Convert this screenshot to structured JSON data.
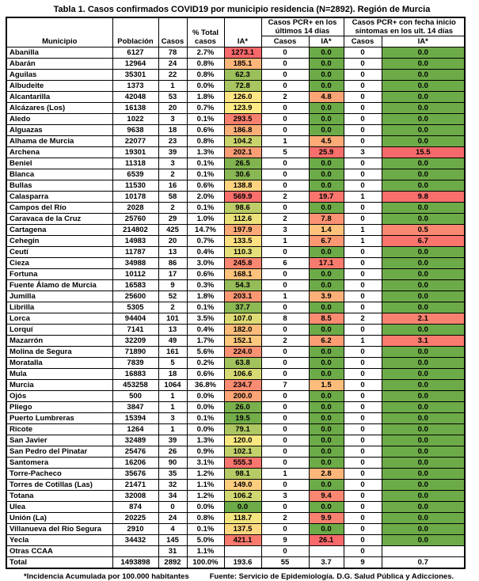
{
  "title": "Tabla 1. Casos confirmados COVID19 por municipio residencia (N=2892). Región de Murcia",
  "header": {
    "municipio": "Municipio",
    "poblacion": "Población",
    "casos": "Casos",
    "pct": "% Total casos",
    "ia": "IA*",
    "group_pcr14": "Casos PCR+ en los últimos 14 días",
    "group_sint14": "Casos PCR+ con fecha inicio síntomas en los ult. 14 días",
    "sub_casos": "Casos",
    "sub_ia": "IA*"
  },
  "rows": [
    {
      "municipio": "Abanilla",
      "poblacion": "6127",
      "casos": "78",
      "pct": "2.7%",
      "ia": "1273.1",
      "casos14": "0",
      "ia14": "0.0",
      "casos_sint": "0",
      "ia_sint": "0.0"
    },
    {
      "municipio": "Abarán",
      "poblacion": "12964",
      "casos": "24",
      "pct": "0.8%",
      "ia": "185.1",
      "casos14": "0",
      "ia14": "0.0",
      "casos_sint": "0",
      "ia_sint": "0.0"
    },
    {
      "municipio": "Aguilas",
      "poblacion": "35301",
      "casos": "22",
      "pct": "0.8%",
      "ia": "62.3",
      "casos14": "0",
      "ia14": "0.0",
      "casos_sint": "0",
      "ia_sint": "0.0"
    },
    {
      "municipio": "Albudeite",
      "poblacion": "1373",
      "casos": "1",
      "pct": "0.0%",
      "ia": "72.8",
      "casos14": "0",
      "ia14": "0.0",
      "casos_sint": "0",
      "ia_sint": "0.0"
    },
    {
      "municipio": "Alcantarilla",
      "poblacion": "42048",
      "casos": "53",
      "pct": "1.8%",
      "ia": "126.0",
      "casos14": "2",
      "ia14": "4.8",
      "casos_sint": "0",
      "ia_sint": "0.0"
    },
    {
      "municipio": "Alcázares (Los)",
      "poblacion": "16138",
      "casos": "20",
      "pct": "0.7%",
      "ia": "123.9",
      "casos14": "0",
      "ia14": "0.0",
      "casos_sint": "0",
      "ia_sint": "0.0"
    },
    {
      "municipio": "Aledo",
      "poblacion": "1022",
      "casos": "3",
      "pct": "0.1%",
      "ia": "293.5",
      "casos14": "0",
      "ia14": "0.0",
      "casos_sint": "0",
      "ia_sint": "0.0"
    },
    {
      "municipio": "Alguazas",
      "poblacion": "9638",
      "casos": "18",
      "pct": "0.6%",
      "ia": "186.8",
      "casos14": "0",
      "ia14": "0.0",
      "casos_sint": "0",
      "ia_sint": "0.0"
    },
    {
      "municipio": "Alhama de Murcia",
      "poblacion": "22077",
      "casos": "23",
      "pct": "0.8%",
      "ia": "104.2",
      "casos14": "1",
      "ia14": "4.5",
      "casos_sint": "0",
      "ia_sint": "0.0"
    },
    {
      "municipio": "Archena",
      "poblacion": "19301",
      "casos": "39",
      "pct": "1.3%",
      "ia": "202.1",
      "casos14": "5",
      "ia14": "25.9",
      "casos_sint": "3",
      "ia_sint": "15.5"
    },
    {
      "municipio": "Beniel",
      "poblacion": "11318",
      "casos": "3",
      "pct": "0.1%",
      "ia": "26.5",
      "casos14": "0",
      "ia14": "0.0",
      "casos_sint": "0",
      "ia_sint": "0.0"
    },
    {
      "municipio": "Blanca",
      "poblacion": "6539",
      "casos": "2",
      "pct": "0.1%",
      "ia": "30.6",
      "casos14": "0",
      "ia14": "0.0",
      "casos_sint": "0",
      "ia_sint": "0.0"
    },
    {
      "municipio": "Bullas",
      "poblacion": "11530",
      "casos": "16",
      "pct": "0.6%",
      "ia": "138.8",
      "casos14": "0",
      "ia14": "0.0",
      "casos_sint": "0",
      "ia_sint": "0.0"
    },
    {
      "municipio": "Calasparra",
      "poblacion": "10178",
      "casos": "58",
      "pct": "2.0%",
      "ia": "569.9",
      "casos14": "2",
      "ia14": "19.7",
      "casos_sint": "1",
      "ia_sint": "9.8"
    },
    {
      "municipio": "Campos del Río",
      "poblacion": "2028",
      "casos": "2",
      "pct": "0.1%",
      "ia": "98.6",
      "casos14": "0",
      "ia14": "0.0",
      "casos_sint": "0",
      "ia_sint": "0.0"
    },
    {
      "municipio": "Caravaca de la Cruz",
      "poblacion": "25760",
      "casos": "29",
      "pct": "1.0%",
      "ia": "112.6",
      "casos14": "2",
      "ia14": "7.8",
      "casos_sint": "0",
      "ia_sint": "0.0"
    },
    {
      "municipio": "Cartagena",
      "poblacion": "214802",
      "casos": "425",
      "pct": "14.7%",
      "ia": "197.9",
      "casos14": "3",
      "ia14": "1.4",
      "casos_sint": "1",
      "ia_sint": "0.5"
    },
    {
      "municipio": "Cehegín",
      "poblacion": "14983",
      "casos": "20",
      "pct": "0.7%",
      "ia": "133.5",
      "casos14": "1",
      "ia14": "6.7",
      "casos_sint": "1",
      "ia_sint": "6.7"
    },
    {
      "municipio": "Ceutí",
      "poblacion": "11787",
      "casos": "13",
      "pct": "0.4%",
      "ia": "110.3",
      "casos14": "0",
      "ia14": "0.0",
      "casos_sint": "0",
      "ia_sint": "0.0"
    },
    {
      "municipio": "Cieza",
      "poblacion": "34988",
      "casos": "86",
      "pct": "3.0%",
      "ia": "245.8",
      "casos14": "6",
      "ia14": "17.1",
      "casos_sint": "0",
      "ia_sint": "0.0"
    },
    {
      "municipio": "Fortuna",
      "poblacion": "10112",
      "casos": "17",
      "pct": "0.6%",
      "ia": "168.1",
      "casos14": "0",
      "ia14": "0.0",
      "casos_sint": "0",
      "ia_sint": "0.0"
    },
    {
      "municipio": "Fuente Álamo de Murcia",
      "poblacion": "16583",
      "casos": "9",
      "pct": "0.3%",
      "ia": "54.3",
      "casos14": "0",
      "ia14": "0.0",
      "casos_sint": "0",
      "ia_sint": "0.0"
    },
    {
      "municipio": "Jumilla",
      "poblacion": "25600",
      "casos": "52",
      "pct": "1.8%",
      "ia": "203.1",
      "casos14": "1",
      "ia14": "3.9",
      "casos_sint": "0",
      "ia_sint": "0.0"
    },
    {
      "municipio": "Librilla",
      "poblacion": "5305",
      "casos": "2",
      "pct": "0.1%",
      "ia": "37.7",
      "casos14": "0",
      "ia14": "0.0",
      "casos_sint": "0",
      "ia_sint": "0.0"
    },
    {
      "municipio": "Lorca",
      "poblacion": "94404",
      "casos": "101",
      "pct": "3.5%",
      "ia": "107.0",
      "casos14": "8",
      "ia14": "8.5",
      "casos_sint": "2",
      "ia_sint": "2.1"
    },
    {
      "municipio": "Lorquí",
      "poblacion": "7141",
      "casos": "13",
      "pct": "0.4%",
      "ia": "182.0",
      "casos14": "0",
      "ia14": "0.0",
      "casos_sint": "0",
      "ia_sint": "0.0"
    },
    {
      "municipio": "Mazarrón",
      "poblacion": "32209",
      "casos": "49",
      "pct": "1.7%",
      "ia": "152.1",
      "casos14": "2",
      "ia14": "6.2",
      "casos_sint": "1",
      "ia_sint": "3.1"
    },
    {
      "municipio": "Molina de Segura",
      "poblacion": "71890",
      "casos": "161",
      "pct": "5.6%",
      "ia": "224.0",
      "casos14": "0",
      "ia14": "0.0",
      "casos_sint": "0",
      "ia_sint": "0.0"
    },
    {
      "municipio": "Moratalla",
      "poblacion": "7839",
      "casos": "5",
      "pct": "0.2%",
      "ia": "63.8",
      "casos14": "0",
      "ia14": "0.0",
      "casos_sint": "0",
      "ia_sint": "0.0"
    },
    {
      "municipio": "Mula",
      "poblacion": "16883",
      "casos": "18",
      "pct": "0.6%",
      "ia": "106.6",
      "casos14": "0",
      "ia14": "0.0",
      "casos_sint": "0",
      "ia_sint": "0.0"
    },
    {
      "municipio": "Murcia",
      "poblacion": "453258",
      "casos": "1064",
      "pct": "36.8%",
      "ia": "234.7",
      "casos14": "7",
      "ia14": "1.5",
      "casos_sint": "0",
      "ia_sint": "0.0"
    },
    {
      "municipio": "Ojós",
      "poblacion": "500",
      "casos": "1",
      "pct": "0.0%",
      "ia": "200.0",
      "casos14": "0",
      "ia14": "0.0",
      "casos_sint": "0",
      "ia_sint": "0.0"
    },
    {
      "municipio": "Pliego",
      "poblacion": "3847",
      "casos": "1",
      "pct": "0.0%",
      "ia": "26.0",
      "casos14": "0",
      "ia14": "0.0",
      "casos_sint": "0",
      "ia_sint": "0.0"
    },
    {
      "municipio": "Puerto Lumbreras",
      "poblacion": "15394",
      "casos": "3",
      "pct": "0.1%",
      "ia": "19.5",
      "casos14": "0",
      "ia14": "0.0",
      "casos_sint": "0",
      "ia_sint": "0.0"
    },
    {
      "municipio": "Ricote",
      "poblacion": "1264",
      "casos": "1",
      "pct": "0.0%",
      "ia": "79.1",
      "casos14": "0",
      "ia14": "0.0",
      "casos_sint": "0",
      "ia_sint": "0.0"
    },
    {
      "municipio": "San Javier",
      "poblacion": "32489",
      "casos": "39",
      "pct": "1.3%",
      "ia": "120.0",
      "casos14": "0",
      "ia14": "0.0",
      "casos_sint": "0",
      "ia_sint": "0.0"
    },
    {
      "municipio": "San Pedro del Pinatar",
      "poblacion": "25476",
      "casos": "26",
      "pct": "0.9%",
      "ia": "102.1",
      "casos14": "0",
      "ia14": "0.0",
      "casos_sint": "0",
      "ia_sint": "0.0"
    },
    {
      "municipio": "Santomera",
      "poblacion": "16206",
      "casos": "90",
      "pct": "3.1%",
      "ia": "555.3",
      "casos14": "0",
      "ia14": "0.0",
      "casos_sint": "0",
      "ia_sint": "0.0"
    },
    {
      "municipio": "Torre-Pacheco",
      "poblacion": "35676",
      "casos": "35",
      "pct": "1.2%",
      "ia": "98.1",
      "casos14": "1",
      "ia14": "2.8",
      "casos_sint": "0",
      "ia_sint": "0.0"
    },
    {
      "municipio": "Torres de Cotillas (Las)",
      "poblacion": "21471",
      "casos": "32",
      "pct": "1.1%",
      "ia": "149.0",
      "casos14": "0",
      "ia14": "0.0",
      "casos_sint": "0",
      "ia_sint": "0.0"
    },
    {
      "municipio": "Totana",
      "poblacion": "32008",
      "casos": "34",
      "pct": "1.2%",
      "ia": "106.2",
      "casos14": "3",
      "ia14": "9.4",
      "casos_sint": "0",
      "ia_sint": "0.0"
    },
    {
      "municipio": "Ulea",
      "poblacion": "874",
      "casos": "0",
      "pct": "0.0%",
      "ia": "0.0",
      "casos14": "0",
      "ia14": "0.0",
      "casos_sint": "0",
      "ia_sint": "0.0"
    },
    {
      "municipio": "Unión (La)",
      "poblacion": "20225",
      "casos": "24",
      "pct": "0.8%",
      "ia": "118.7",
      "casos14": "2",
      "ia14": "9.9",
      "casos_sint": "0",
      "ia_sint": "0.0"
    },
    {
      "municipio": "Villanueva del Río Segura",
      "poblacion": "2910",
      "casos": "4",
      "pct": "0.1%",
      "ia": "137.5",
      "casos14": "0",
      "ia14": "0.0",
      "casos_sint": "0",
      "ia_sint": "0.0"
    },
    {
      "municipio": "Yecla",
      "poblacion": "34432",
      "casos": "145",
      "pct": "5.0%",
      "ia": "421.1",
      "casos14": "9",
      "ia14": "26.1",
      "casos_sint": "0",
      "ia_sint": "0.0"
    }
  ],
  "otras_row": {
    "municipio": "Otras CCAA",
    "poblacion": "",
    "casos": "31",
    "pct": "1.1%",
    "ia": "",
    "casos14": "0",
    "ia14": "",
    "casos_sint": "0",
    "ia_sint": ""
  },
  "total_row": {
    "municipio": "Total",
    "poblacion": "1493898",
    "casos": "2892",
    "pct": "100.0%",
    "ia": "193.6",
    "casos14": "55",
    "ia14": "3.7",
    "casos_sint": "9",
    "ia_sint": "0.7"
  },
  "footnote": {
    "incidencia": "*Incidencia Acumulada por 100.000 habitantes",
    "fuente": "Fuente: Servicio de Epidemiología. D.G. Salud Pública y Adicciones."
  },
  "colors": {
    "scale_green": "#6DAB48",
    "scale_yellow": "#FFEB84",
    "scale_red": "#F8696B",
    "border": "#000000",
    "text": "#000000"
  }
}
